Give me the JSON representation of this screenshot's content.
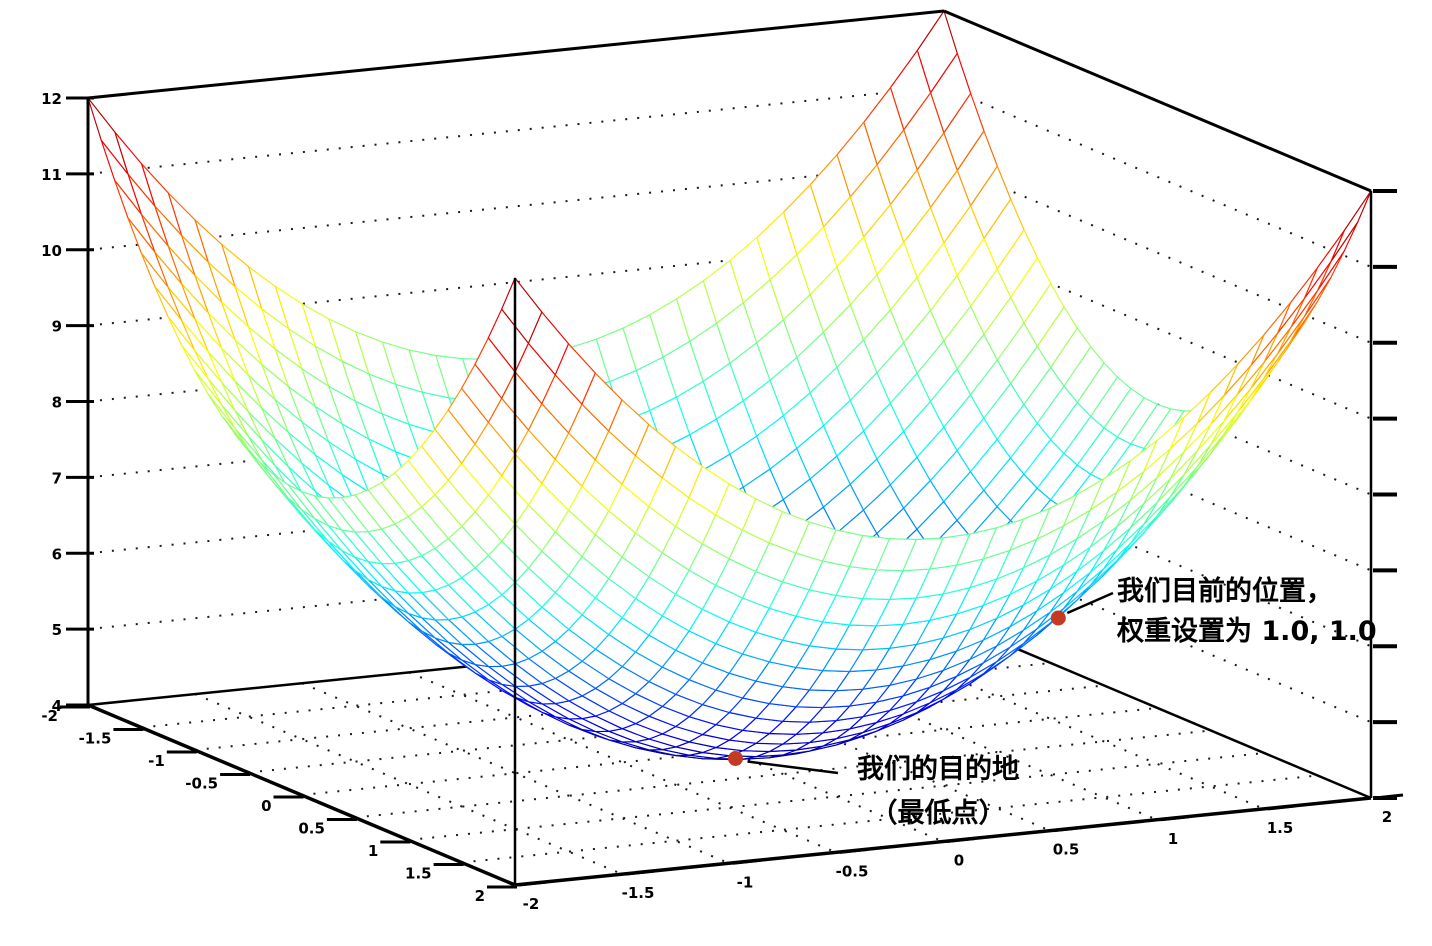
{
  "figure": {
    "background": "#ffffff"
  },
  "chart_data": {
    "type": "surface",
    "title": "",
    "surface": {
      "kind": "paraboloid",
      "formula": "z = x^2 + y^2 + 4",
      "z_offset": 4,
      "x_coef": 1,
      "y_coef": 1,
      "x_range": [
        -2,
        2
      ],
      "y_range": [
        -2,
        2
      ],
      "z_range": [
        4,
        12
      ],
      "grid_divisions": 32,
      "colormap": "jet",
      "hidden_line_fill": "#ffffff"
    },
    "axes": {
      "x": {
        "ticks": [
          -2,
          -1.5,
          -1,
          -0.5,
          0,
          0.5,
          1,
          1.5,
          2
        ],
        "tick_labels": [
          "-2",
          "-1.5",
          "-1",
          "-0.5",
          "0",
          "0.5",
          "1",
          "1.5",
          "2"
        ]
      },
      "y": {
        "ticks": [
          -2,
          -1.5,
          -1,
          -0.5,
          0,
          0.5,
          1,
          1.5,
          2
        ],
        "tick_labels": [
          "-2",
          "-1.5",
          "-1",
          "-0.5",
          "0",
          "0.5",
          "1",
          "1.5",
          "2"
        ]
      },
      "z": {
        "ticks": [
          4,
          5,
          6,
          7,
          8,
          9,
          10,
          11,
          12
        ],
        "tick_labels": [
          "4",
          "5",
          "6",
          "7",
          "8",
          "9",
          "10",
          "11",
          "12"
        ]
      }
    },
    "grid": {
      "style": "dotted",
      "color": "#1a1a1a",
      "wall_z_levels": [
        5,
        6,
        7,
        8,
        9,
        10,
        11
      ],
      "floor_levels": [
        -1.5,
        -1,
        -0.5,
        0,
        0.5,
        1,
        1.5
      ]
    },
    "points": [
      {
        "name": "destination",
        "x": 0,
        "y": 0,
        "z": 4,
        "color": "#c43a22"
      },
      {
        "name": "current-position",
        "x": 1,
        "y": 1,
        "z": 6,
        "color": "#c43a22"
      }
    ],
    "annotations": [
      {
        "target": "destination",
        "lines": [
          "我们的目的地",
          "（最低点）"
        ]
      },
      {
        "target": "current-position",
        "lines": [
          "我们目前的位置，",
          "权重设置为 1.0, 1.0"
        ]
      }
    ],
    "axis_color": "#000000"
  }
}
